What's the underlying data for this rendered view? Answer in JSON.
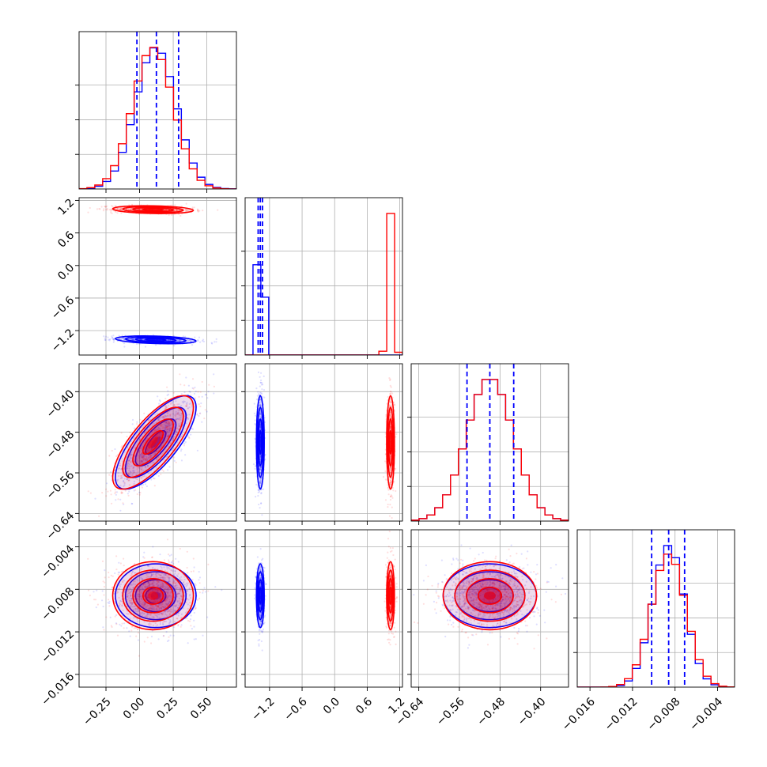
{
  "chart_data": {
    "type": "corner",
    "title": "",
    "parameters": [
      {
        "range": [
          -0.45,
          0.72
        ],
        "ticks": [
          -0.25,
          0.0,
          0.25,
          0.5
        ],
        "tick_labels": [
          "−0.25",
          "0.00",
          "0.25",
          "0.50"
        ],
        "blue_quantiles": [
          -0.02,
          0.125,
          0.29
        ]
      },
      {
        "range": [
          -1.65,
          1.25
        ],
        "ticks": [
          -1.2,
          -0.6,
          0.0,
          0.6,
          1.2
        ],
        "tick_labels": [
          "−1.2",
          "−0.6",
          "0.0",
          "0.6",
          "1.2"
        ],
        "blue_quantiles": [
          -1.41,
          -1.37,
          -1.33
        ]
      },
      {
        "range": [
          -0.655,
          -0.345
        ],
        "ticks": [
          -0.64,
          -0.56,
          -0.48,
          -0.4
        ],
        "tick_labels": [
          "−0.64",
          "−0.56",
          "−0.48",
          "−0.40"
        ],
        "blue_quantiles": [
          -0.545,
          -0.5,
          -0.453
        ]
      },
      {
        "range": [
          -0.0172,
          -0.0024
        ],
        "ticks": [
          -0.016,
          -0.012,
          -0.008,
          -0.004
        ],
        "tick_labels": [
          "−0.016",
          "−0.012",
          "−0.008",
          "−0.004"
        ],
        "blue_quantiles": [
          -0.0102,
          -0.0086,
          -0.0071
        ]
      }
    ],
    "series": [
      {
        "color": "#0000ff",
        "means": [
          0.12,
          -1.37,
          -0.5,
          -0.0086
        ],
        "sds": [
          0.15,
          0.036,
          0.046,
          0.0015
        ],
        "corr": [
          [
            0,
            1,
            -0.3
          ],
          [
            0,
            2,
            0.75
          ]
        ]
      },
      {
        "color": "#ff0000",
        "means": [
          0.1,
          1.03,
          -0.5,
          -0.0086
        ],
        "sds": [
          0.15,
          0.036,
          0.046,
          0.0016
        ],
        "corr": [
          [
            0,
            1,
            -0.2
          ],
          [
            0,
            2,
            0.75
          ]
        ]
      }
    ],
    "histogram_bins": 20,
    "contour_levels_sigma": [
      0.5,
      1.0,
      1.5,
      2.0
    ],
    "grid": true,
    "legend": "none"
  }
}
